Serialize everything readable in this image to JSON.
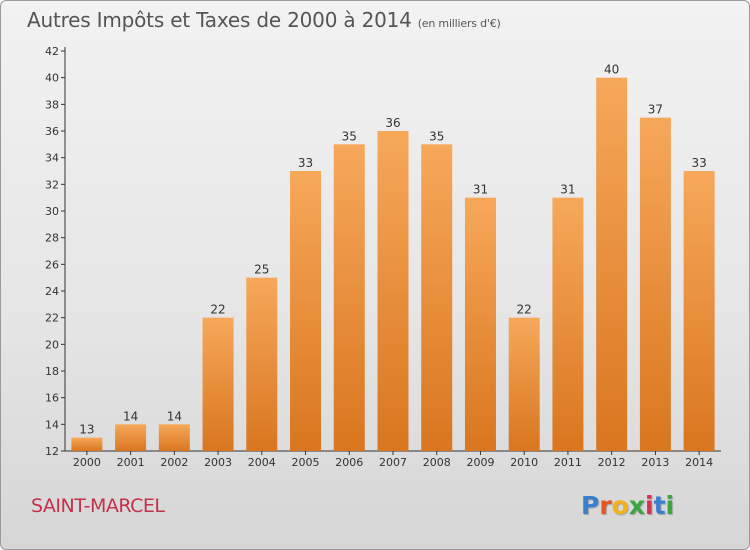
{
  "title": "Autres Impôts et Taxes de 2000 à 2014",
  "subtitle": "(en milliers d'€)",
  "commune": "SAINT-MARCEL",
  "logo": {
    "letters": [
      "P",
      "r",
      "o",
      "x",
      "i",
      "t",
      "i"
    ],
    "colors": [
      "#3a7fcf",
      "#e8541e",
      "#f3b21b",
      "#3aa640",
      "#d6324e",
      "#3a7fcf",
      "#3aa640"
    ]
  },
  "colors": {
    "bar_light": "#f6a85a",
    "bar_dark": "#d9761f",
    "title": "#555555",
    "commune": "#c4314b"
  },
  "chart_data": {
    "type": "bar",
    "title": "Autres Impôts et Taxes de 2000 à 2014",
    "xlabel": "",
    "ylabel": "",
    "categories": [
      "2000",
      "2001",
      "2002",
      "2003",
      "2004",
      "2005",
      "2006",
      "2007",
      "2008",
      "2009",
      "2010",
      "2011",
      "2012",
      "2013",
      "2014"
    ],
    "values": [
      13,
      14,
      14,
      22,
      25,
      33,
      35,
      36,
      35,
      31,
      22,
      31,
      40,
      37,
      33
    ],
    "ylim": [
      12,
      42
    ],
    "yticks": [
      12,
      14,
      16,
      18,
      20,
      22,
      24,
      26,
      28,
      30,
      32,
      34,
      36,
      38,
      40,
      42
    ],
    "grid": false,
    "data_labels": true
  }
}
